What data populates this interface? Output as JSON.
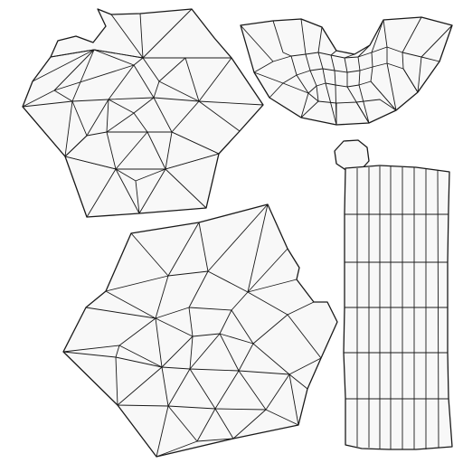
{
  "colors": {
    "background": "#ffffff",
    "fill": "#f8f8f8",
    "stroke": "#1a1a1a"
  }
}
